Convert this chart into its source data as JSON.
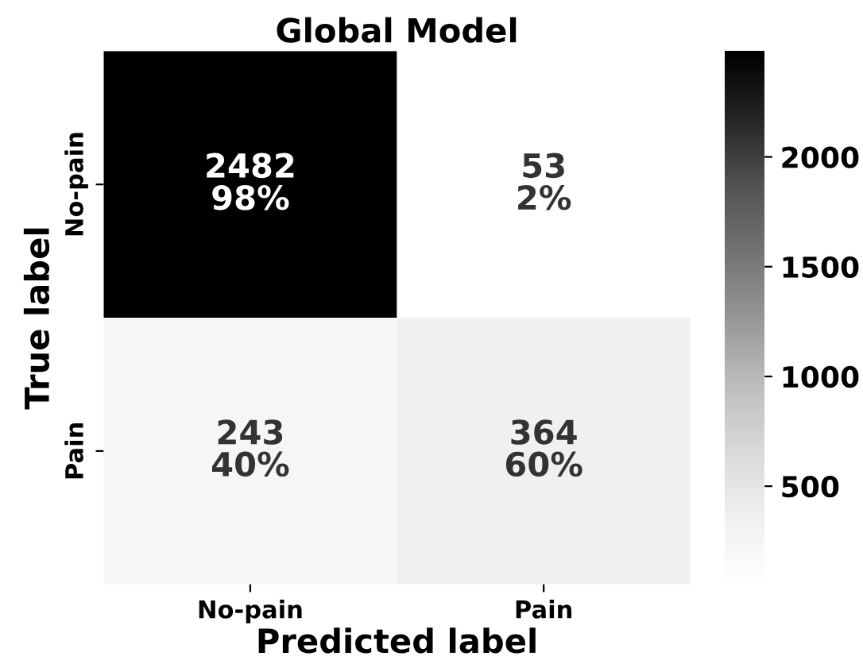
{
  "chart_data": {
    "type": "heatmap",
    "title": "Global Model",
    "xlabel": "Predicted label",
    "ylabel": "True label",
    "categories": [
      "No-pain",
      "Pain"
    ],
    "y_categories": [
      "No-pain",
      "Pain"
    ],
    "cells": [
      [
        2482,
        53
      ],
      [
        243,
        364
      ]
    ],
    "cell_labels": [
      [
        "2482\n98%",
        "53\n2%"
      ],
      [
        "243\n40%",
        "364\n60%"
      ]
    ],
    "clim": [
      53,
      2482
    ],
    "cticks": [
      500,
      1000,
      1500,
      2000
    ]
  }
}
